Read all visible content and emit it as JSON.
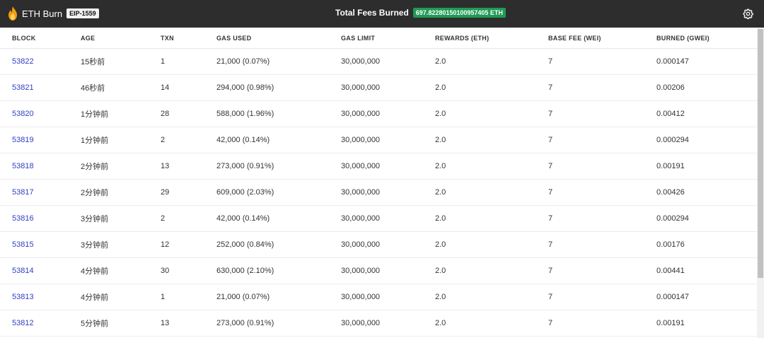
{
  "header": {
    "brand_title": "ETH Burn",
    "brand_badge": "EIP-1559",
    "fees_label": "Total Fees Burned",
    "fees_value": "697.82280150100957405 ETH"
  },
  "colors": {
    "topbar": "#2d2d2d",
    "badge_green": "#1f9a55",
    "link_blue": "#2f3fc7",
    "flame": "#f39c12"
  },
  "icons": {
    "brand": "flame-icon",
    "settings": "gear-icon"
  },
  "table": {
    "columns": [
      "BLOCK",
      "AGE",
      "TXN",
      "GAS USED",
      "GAS LIMIT",
      "REWARDS (ETH)",
      "BASE FEE (WEI)",
      "BURNED (GWEI)"
    ],
    "rows": [
      {
        "block": "53822",
        "age": "15秒前",
        "txn": "1",
        "gas_used": "21,000  (0.07%)",
        "gas_limit": "30,000,000",
        "rewards": "2.0",
        "base_fee": "7",
        "burned": "0.000147"
      },
      {
        "block": "53821",
        "age": "46秒前",
        "txn": "14",
        "gas_used": "294,000  (0.98%)",
        "gas_limit": "30,000,000",
        "rewards": "2.0",
        "base_fee": "7",
        "burned": "0.00206"
      },
      {
        "block": "53820",
        "age": "1分钟前",
        "txn": "28",
        "gas_used": "588,000  (1.96%)",
        "gas_limit": "30,000,000",
        "rewards": "2.0",
        "base_fee": "7",
        "burned": "0.00412"
      },
      {
        "block": "53819",
        "age": "1分钟前",
        "txn": "2",
        "gas_used": "42,000  (0.14%)",
        "gas_limit": "30,000,000",
        "rewards": "2.0",
        "base_fee": "7",
        "burned": "0.000294"
      },
      {
        "block": "53818",
        "age": "2分钟前",
        "txn": "13",
        "gas_used": "273,000  (0.91%)",
        "gas_limit": "30,000,000",
        "rewards": "2.0",
        "base_fee": "7",
        "burned": "0.00191"
      },
      {
        "block": "53817",
        "age": "2分钟前",
        "txn": "29",
        "gas_used": "609,000  (2.03%)",
        "gas_limit": "30,000,000",
        "rewards": "2.0",
        "base_fee": "7",
        "burned": "0.00426"
      },
      {
        "block": "53816",
        "age": "3分钟前",
        "txn": "2",
        "gas_used": "42,000  (0.14%)",
        "gas_limit": "30,000,000",
        "rewards": "2.0",
        "base_fee": "7",
        "burned": "0.000294"
      },
      {
        "block": "53815",
        "age": "3分钟前",
        "txn": "12",
        "gas_used": "252,000  (0.84%)",
        "gas_limit": "30,000,000",
        "rewards": "2.0",
        "base_fee": "7",
        "burned": "0.00176"
      },
      {
        "block": "53814",
        "age": "4分钟前",
        "txn": "30",
        "gas_used": "630,000  (2.10%)",
        "gas_limit": "30,000,000",
        "rewards": "2.0",
        "base_fee": "7",
        "burned": "0.00441"
      },
      {
        "block": "53813",
        "age": "4分钟前",
        "txn": "1",
        "gas_used": "21,000  (0.07%)",
        "gas_limit": "30,000,000",
        "rewards": "2.0",
        "base_fee": "7",
        "burned": "0.000147"
      },
      {
        "block": "53812",
        "age": "5分钟前",
        "txn": "13",
        "gas_used": "273,000  (0.91%)",
        "gas_limit": "30,000,000",
        "rewards": "2.0",
        "base_fee": "7",
        "burned": "0.00191"
      }
    ]
  }
}
